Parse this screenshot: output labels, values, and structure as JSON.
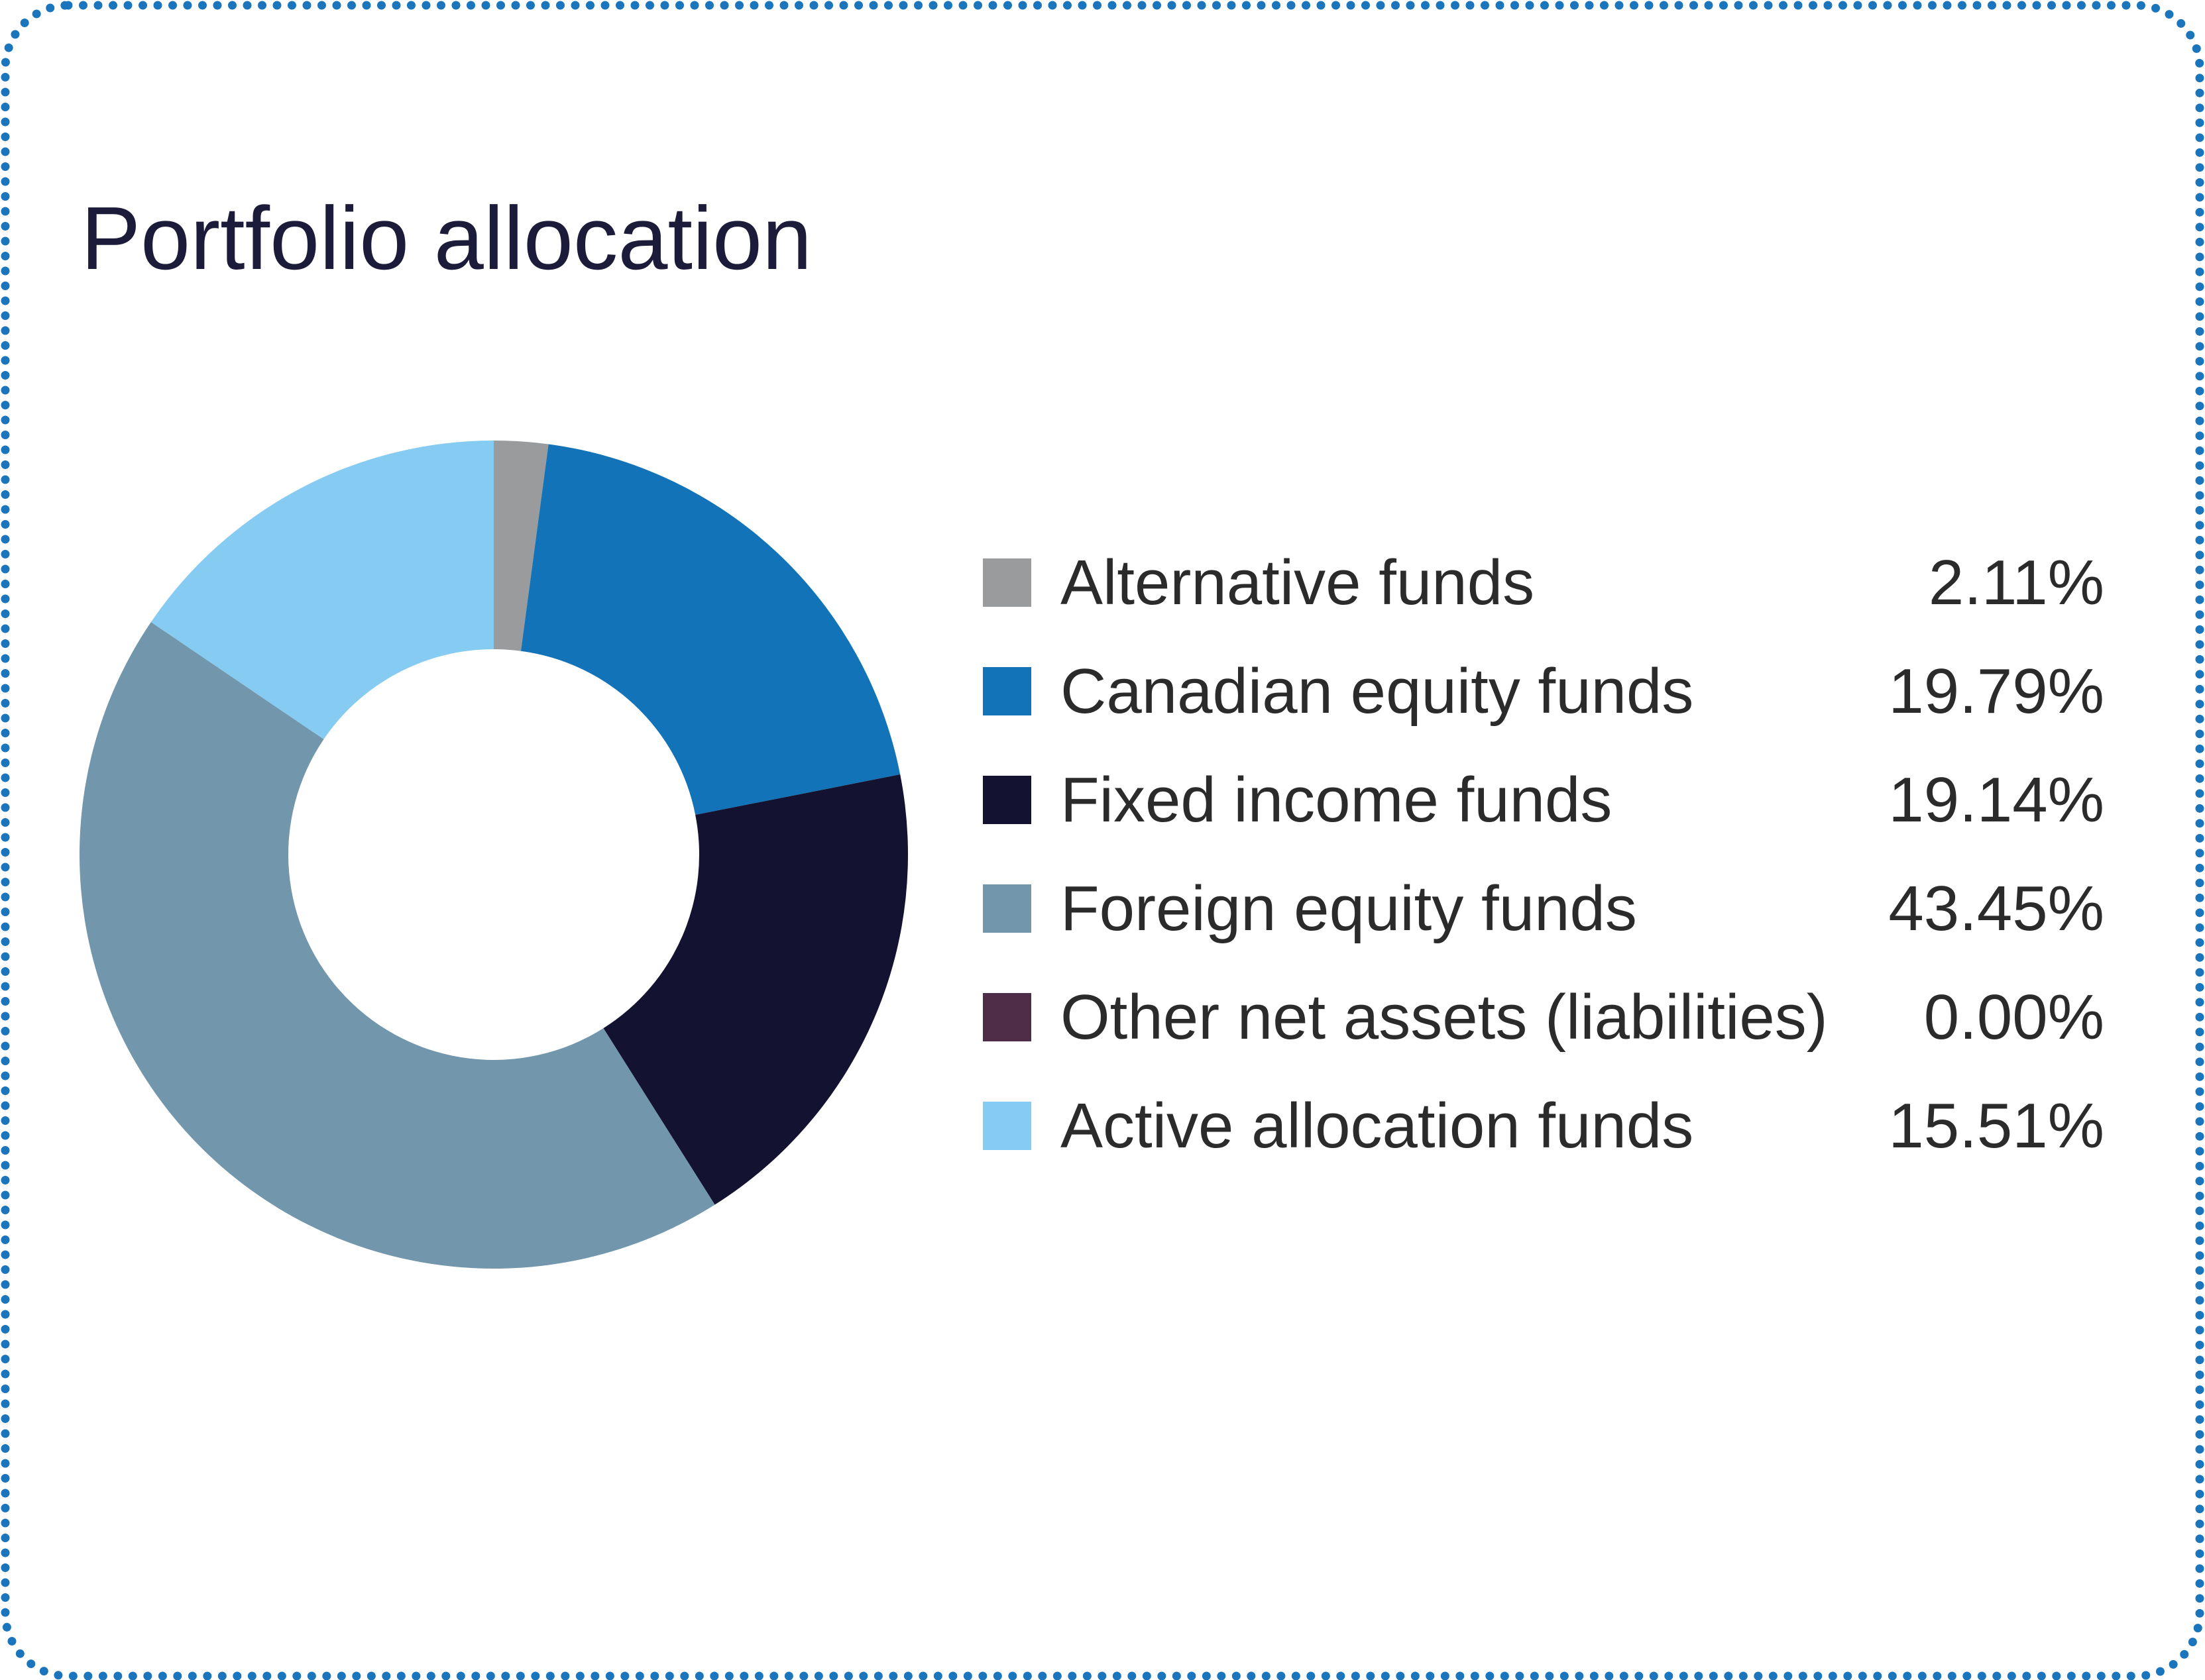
{
  "card": {
    "title": "Portfolio allocation"
  },
  "colors": {
    "border_dots": "#1b75bc",
    "title_text": "#1c1b39",
    "legend_text": "#2b2b2b",
    "background": "#ffffff",
    "donut_hole": "#ffffff"
  },
  "chart_data": {
    "type": "pie",
    "title": "Portfolio allocation",
    "donut": true,
    "start_angle_deg": 0,
    "direction": "clockwise",
    "inner_radius_ratio": 0.496,
    "legend_position": "right",
    "segments": [
      {
        "label": "Alternative funds",
        "value": 2.11,
        "display": "2.11%",
        "color": "#9a9b9d"
      },
      {
        "label": "Canadian equity funds",
        "value": 19.79,
        "display": "19.79%",
        "color": "#1273b9"
      },
      {
        "label": "Fixed income funds",
        "value": 19.14,
        "display": "19.14%",
        "color": "#131230"
      },
      {
        "label": "Foreign equity funds",
        "value": 43.45,
        "display": "43.45%",
        "color": "#7296ac"
      },
      {
        "label": "Other net assets (liabilities)",
        "value": 0.0,
        "display": "0.00%",
        "color": "#4f2c48"
      },
      {
        "label": "Active allocation funds",
        "value": 15.51,
        "display": "15.51%",
        "color": "#85cbf2"
      }
    ]
  }
}
